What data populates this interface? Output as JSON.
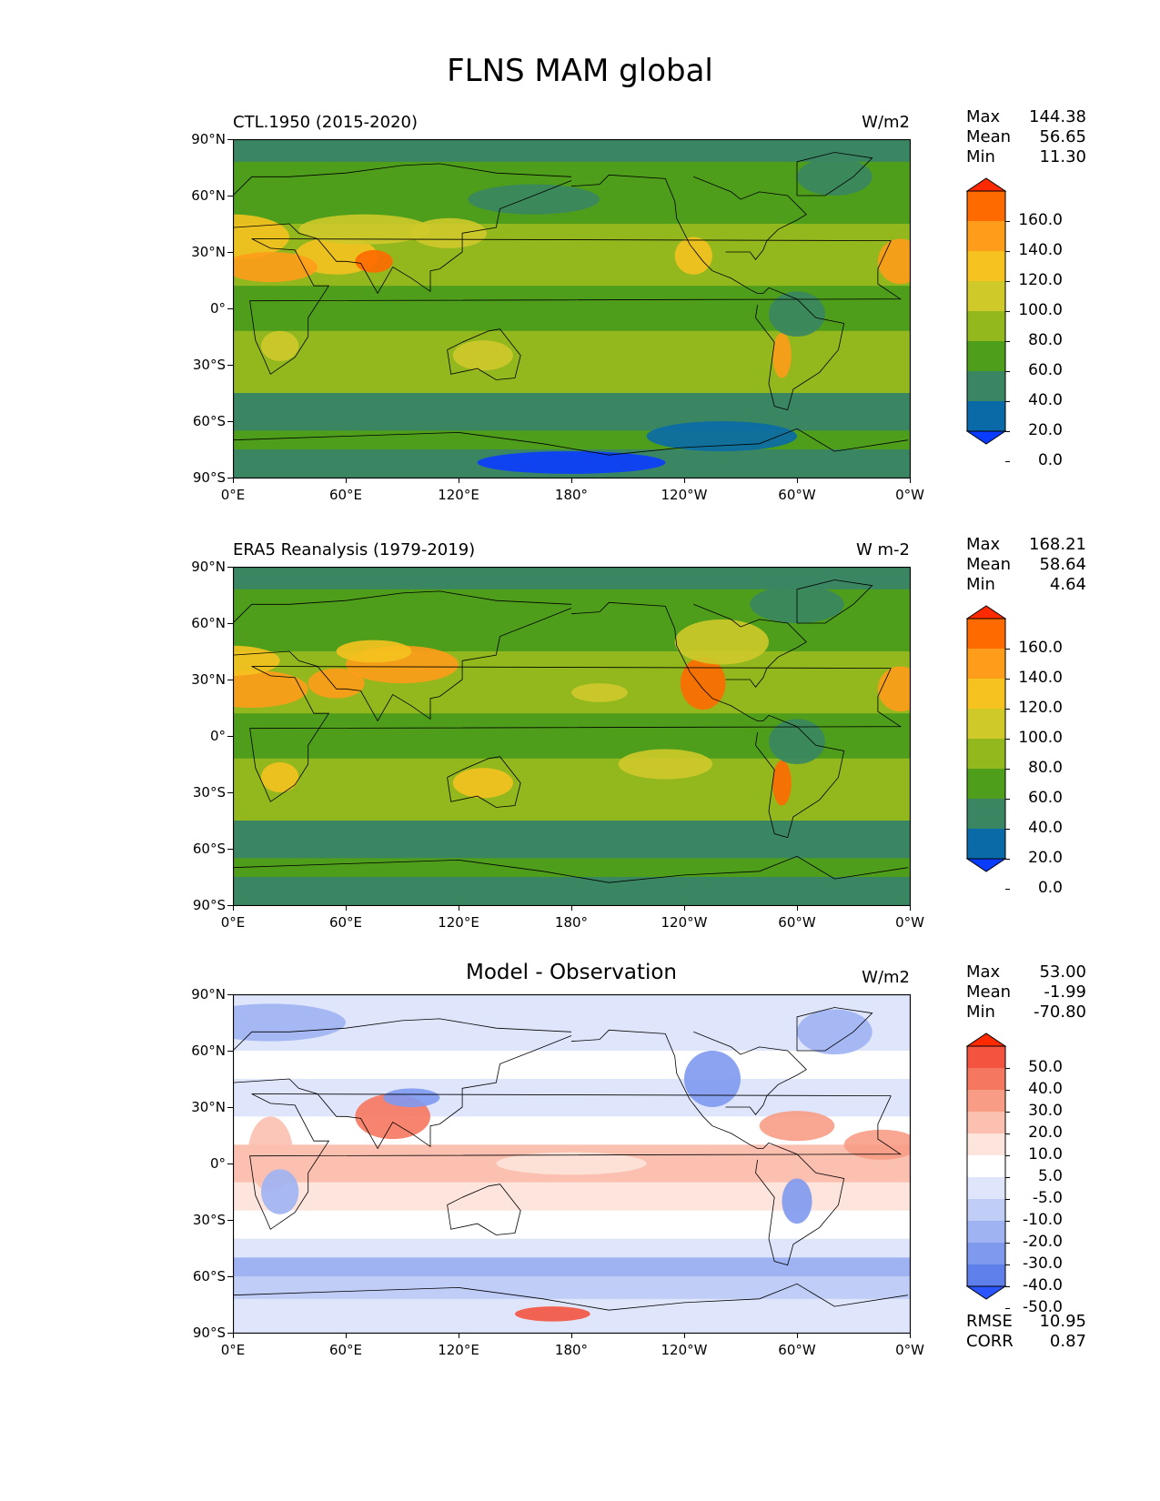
{
  "title": "FLNS MAM global",
  "axes": {
    "lat_labels": [
      "90°N",
      "60°N",
      "30°N",
      "0°",
      "30°S",
      "60°S",
      "90°S"
    ],
    "lon_labels": [
      "0°E",
      "60°E",
      "120°E",
      "180°",
      "120°W",
      "60°W",
      "0°W"
    ]
  },
  "panels": [
    {
      "left_title": "CTL.1950 (2015-2020)",
      "center_title": "",
      "units": "W/m2",
      "stats": [
        {
          "label": "Max",
          "value": "144.38"
        },
        {
          "label": "Mean",
          "value": "56.65"
        },
        {
          "label": "Min",
          "value": "11.30"
        }
      ],
      "colorbar": {
        "ticks": [
          "160.0",
          "140.0",
          "120.0",
          "100.0",
          "80.0",
          "60.0",
          "40.0",
          "20.0",
          "0.0"
        ],
        "colors": [
          "#ff2a00",
          "#ff6a00",
          "#ff9c1a",
          "#f5c21f",
          "#cfc92a",
          "#93b81e",
          "#4e9e1b",
          "#3a8662",
          "#0a6aa8",
          "#0a3cff"
        ]
      }
    },
    {
      "left_title": "ERA5 Reanalysis (1979-2019)",
      "center_title": "",
      "units": "W m-2",
      "stats": [
        {
          "label": "Max",
          "value": "168.21"
        },
        {
          "label": "Mean",
          "value": "58.64"
        },
        {
          "label": "Min",
          "value": "4.64"
        }
      ],
      "colorbar": {
        "ticks": [
          "160.0",
          "140.0",
          "120.0",
          "100.0",
          "80.0",
          "60.0",
          "40.0",
          "20.0",
          "0.0"
        ],
        "colors": [
          "#ff2a00",
          "#ff6a00",
          "#ff9c1a",
          "#f5c21f",
          "#cfc92a",
          "#93b81e",
          "#4e9e1b",
          "#3a8662",
          "#0a6aa8",
          "#0a3cff"
        ]
      }
    },
    {
      "left_title": "",
      "center_title": "Model - Observation",
      "units": "W/m2",
      "stats": [
        {
          "label": "Max",
          "value": "53.00"
        },
        {
          "label": "Mean",
          "value": "-1.99"
        },
        {
          "label": "Min",
          "value": "-70.80"
        }
      ],
      "extra_stats": [
        {
          "label": "RMSE",
          "value": "10.95"
        },
        {
          "label": "CORR",
          "value": "0.87"
        }
      ],
      "colorbar": {
        "ticks": [
          "50.0",
          "40.0",
          "30.0",
          "20.0",
          "10.0",
          "5.0",
          "-5.0",
          "-10.0",
          "-20.0",
          "-30.0",
          "-40.0",
          "-50.0"
        ],
        "colors": [
          "#ff2a00",
          "#f4533f",
          "#f6775f",
          "#f89c86",
          "#fbc0b0",
          "#fde4dc",
          "#ffffff",
          "#dfe6fb",
          "#bfcdf7",
          "#9fb3f3",
          "#7f99ef",
          "#5f7feb",
          "#2a55ff"
        ]
      }
    }
  ]
}
